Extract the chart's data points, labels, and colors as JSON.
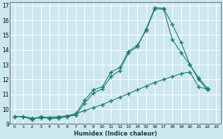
{
  "xlabel": "Humidex (Indice chaleur)",
  "bg_color": "#cce8ee",
  "grid_color": "#ffffff",
  "line_color": "#1a7a6e",
  "xlim": [
    -0.5,
    23.5
  ],
  "ylim": [
    9.0,
    17.2
  ],
  "xtick_labels": [
    "0",
    "1",
    "2",
    "3",
    "4",
    "5",
    "6",
    "7",
    "8",
    "9",
    "10",
    "11",
    "12",
    "13",
    "14",
    "15",
    "16",
    "17",
    "18",
    "19",
    "20",
    "21",
    "22",
    "23"
  ],
  "xtick_vals": [
    0,
    1,
    2,
    3,
    4,
    5,
    6,
    7,
    8,
    9,
    10,
    11,
    12,
    13,
    14,
    15,
    16,
    17,
    18,
    19,
    20,
    21,
    22,
    23
  ],
  "ytick_vals": [
    9,
    10,
    11,
    12,
    13,
    14,
    15,
    16,
    17
  ],
  "series": [
    {
      "x": [
        0,
        1,
        2,
        3,
        4,
        5,
        6,
        7,
        8,
        9,
        10,
        11,
        12,
        13,
        14,
        15,
        16,
        17,
        18,
        19,
        20,
        21,
        22
      ],
      "y": [
        9.5,
        9.5,
        9.3,
        9.5,
        9.4,
        9.4,
        9.5,
        9.7,
        10.6,
        11.3,
        11.5,
        12.5,
        12.8,
        13.9,
        14.3,
        15.3,
        16.75,
        16.75,
        14.7,
        13.8,
        13.0,
        12.0,
        11.3
      ]
    },
    {
      "x": [
        0,
        1,
        2,
        3,
        4,
        5,
        6,
        7,
        8,
        9,
        10,
        11,
        12,
        13,
        14,
        15,
        16,
        17,
        18,
        19,
        20,
        21,
        22
      ],
      "y": [
        9.5,
        9.5,
        9.3,
        9.5,
        9.35,
        9.4,
        9.5,
        9.6,
        10.4,
        11.1,
        11.35,
        12.2,
        12.6,
        13.8,
        14.2,
        15.4,
        16.85,
        16.8,
        15.7,
        14.5,
        13.0,
        12.1,
        11.4
      ]
    },
    {
      "x": [
        0,
        1,
        2,
        3,
        4,
        5,
        6,
        7,
        8,
        9,
        10,
        11,
        12,
        13,
        14,
        15,
        16,
        17,
        18,
        19,
        20,
        21,
        22
      ],
      "y": [
        9.5,
        9.5,
        9.4,
        9.4,
        9.45,
        9.5,
        9.55,
        9.7,
        9.9,
        10.1,
        10.3,
        10.55,
        10.8,
        11.05,
        11.3,
        11.55,
        11.8,
        12.0,
        12.2,
        12.4,
        12.5,
        11.5,
        11.35
      ]
    }
  ]
}
